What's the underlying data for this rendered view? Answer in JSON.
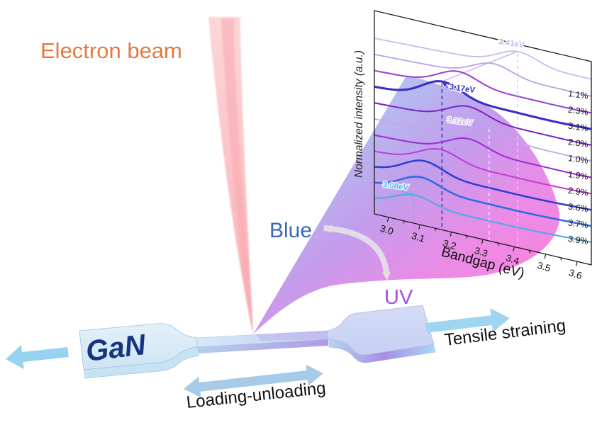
{
  "scene": {
    "electron_beam_label": "Electron beam",
    "blue_label": "Blue",
    "uv_label": "UV",
    "sample_label": "GaN",
    "tensile_label": "Tensile straining",
    "loading_label": "Loading-unloading",
    "colors": {
      "electron_beam_text": "#E5793B",
      "blue_text": "#3968B8",
      "uv_text": "#A352D6",
      "gan_text": "#17357E",
      "beam_pink": "#FBC6C9",
      "cone_blue": "#A7B9EE",
      "cone_magenta": "#F773DB",
      "sample_blue": "#D9EAF8",
      "arrow_blue": "#96D3F0"
    }
  },
  "chart_data": {
    "type": "line",
    "variant": "waterfall-3d-cl-spectra",
    "title": "",
    "xlabel": "Bandgap (eV)",
    "ylabel": "Normalized intensity (a.u.)",
    "xlim": [
      2.955,
      3.645
    ],
    "xticks": [
      3.0,
      3.1,
      3.2,
      3.3,
      3.4,
      3.5,
      3.6
    ],
    "x_minor_step": 0.05,
    "grid": false,
    "frame": true,
    "legend_position": "right-inline-percent-labels",
    "series": [
      {
        "label": "",
        "peak_ev": 3.41,
        "color": "#CDB8EE",
        "lw": 1.8,
        "amp": 20
      },
      {
        "label": "1.1%",
        "peak_ev": 3.33,
        "color": "#BF9FE6",
        "lw": 1.8,
        "amp": 19
      },
      {
        "label": "2.3%",
        "peak_ev": 3.22,
        "color": "#9747D6",
        "lw": 2.1,
        "amp": 21
      },
      {
        "label": "3.1%",
        "peak_ev": 3.17,
        "color": "#3B2EC8",
        "lw": 3.1,
        "amp": 25
      },
      {
        "label": "2.0%",
        "peak_ev": 3.25,
        "color": "#7B28C6",
        "lw": 2.1,
        "amp": 20
      },
      {
        "label": "1.0%",
        "peak_ev": 3.32,
        "color": "#C2A6E8",
        "lw": 1.8,
        "amp": 19
      },
      {
        "label": "1.9%",
        "peak_ev": 3.25,
        "color": "#A12CD8",
        "lw": 2.1,
        "amp": 20
      },
      {
        "label": "2.9%",
        "peak_ev": 3.16,
        "color": "#C23FD8",
        "lw": 2.1,
        "amp": 20
      },
      {
        "label": "3.6%",
        "peak_ev": 3.11,
        "color": "#2C3ED2",
        "lw": 2.5,
        "amp": 22
      },
      {
        "label": "3.7%",
        "peak_ev": 3.1,
        "color": "#2D6AE2",
        "lw": 2.5,
        "amp": 21
      },
      {
        "label": "3.9%",
        "peak_ev": 3.08,
        "color": "#4FAAE8",
        "lw": 2.1,
        "amp": 17
      }
    ],
    "annotations": [
      {
        "text": "3.41eV",
        "series": 0,
        "ev": 3.41,
        "color": "#C9B3EC",
        "dash": "#DCCCF2"
      },
      {
        "text": "3.17eV",
        "series": 3,
        "ev": 3.17,
        "color": "#2F2FC4",
        "dash": "#4438C8",
        "arrow": true
      },
      {
        "text": "3.32eV",
        "series": 5,
        "ev": 3.32,
        "color": "#C8B2EC",
        "dash": "#EFEAFB"
      },
      {
        "text": "3.08eV",
        "series": 10,
        "ev": 3.08,
        "color": "#56AEEC",
        "dash": "#5CB8F0",
        "arrow": true
      }
    ],
    "peak_guide_color": "#B9A6E8"
  }
}
